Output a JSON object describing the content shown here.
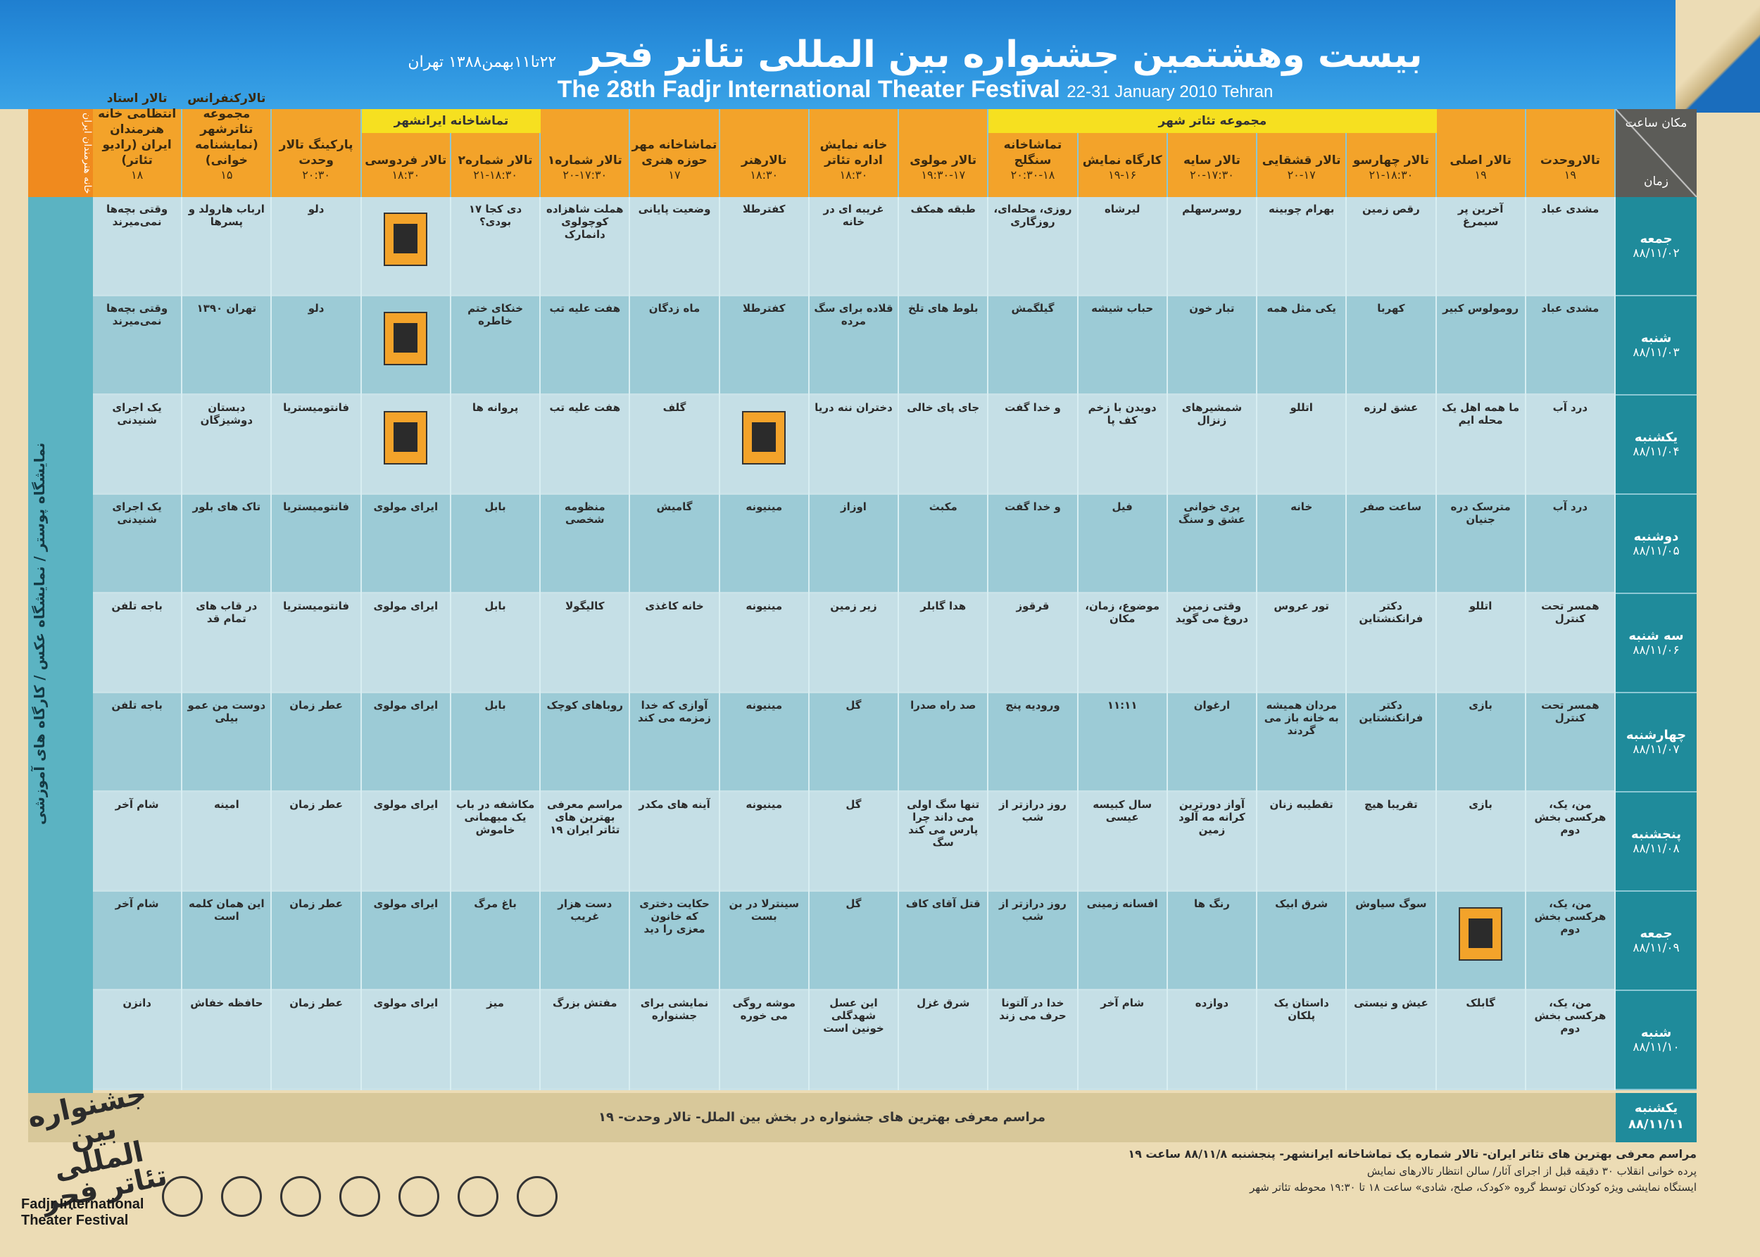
{
  "header": {
    "title_fa": "بیست وهشتمین جشنواره بین المللی تئاتر فجر",
    "subtitle_fa": "۲۲تا۱۱بهمن۱۳۸۸ تهران",
    "title_en": "The 28th Fadjr International Theater Festival",
    "dates_en": "22-31 January 2010 Tehran"
  },
  "corner": {
    "place_time": "مکان ساعت",
    "time": "زمان"
  },
  "group_labels": {
    "theater_shahr": "مجموعه تئاتر شهر",
    "iranshahr": "تماشاخانه ایرانشهر"
  },
  "venues": [
    {
      "name": "تالاروحدت",
      "time": "۱۹"
    },
    {
      "name": "تالار اصلی",
      "time": "۱۹"
    },
    {
      "name": "تالار چهارسو",
      "time": "۲۱-۱۸:۳۰"
    },
    {
      "name": "تالار قشقایی",
      "time": "۲۰-۱۷"
    },
    {
      "name": "تالار سایه",
      "time": "۲۰-۱۷:۳۰"
    },
    {
      "name": "کارگاه نمایش",
      "time": "۱۹-۱۶"
    },
    {
      "name": "تماشاخانه سنگلج",
      "time": "۲۰:۳۰-۱۸"
    },
    {
      "name": "تالار مولوی",
      "time": "۱۹:۳۰-۱۷"
    },
    {
      "name": "خانه نمایش اداره تئاتر",
      "time": "۱۸:۳۰"
    },
    {
      "name": "تالارهنر",
      "time": "۱۸:۳۰"
    },
    {
      "name": "تماشاخانه مهر حوزه هنری",
      "time": "۱۷"
    },
    {
      "name": "تالار شماره۱",
      "time": "۲۰-۱۷:۳۰"
    },
    {
      "name": "تالار شماره۲",
      "time": "۲۱-۱۸:۳۰"
    },
    {
      "name": "تالار فردوسی",
      "time": "۱۸:۳۰"
    },
    {
      "name": "پارکینگ تالار وحدت",
      "time": "۲۰:۳۰"
    },
    {
      "name": "تالارکنفرانس مجموعه تئاترشهر (نمایشنامه خوانی)",
      "time": "۱۵"
    },
    {
      "name": "تالار استاد انتظامی خانه هنرمندان ایران (رادیو تئاتر)",
      "time": "۱۸"
    }
  ],
  "left_header": "خانه هنرمندان ایران",
  "left_vertical": "نمایشگاه پوستر / نمایشگاه عکس / کارگاه های آموزشی",
  "days": [
    {
      "day": "جمعه",
      "date": "۸۸/۱۱/۰۲"
    },
    {
      "day": "شنبه",
      "date": "۸۸/۱۱/۰۳"
    },
    {
      "day": "یکشنبه",
      "date": "۸۸/۱۱/۰۴"
    },
    {
      "day": "دوشنبه",
      "date": "۸۸/۱۱/۰۵"
    },
    {
      "day": "سه شنبه",
      "date": "۸۸/۱۱/۰۶"
    },
    {
      "day": "چهارشنبه",
      "date": "۸۸/۱۱/۰۷"
    },
    {
      "day": "پنجشنبه",
      "date": "۸۸/۱۱/۰۸"
    },
    {
      "day": "جمعه",
      "date": "۸۸/۱۱/۰۹"
    },
    {
      "day": "شنبه",
      "date": "۸۸/۱۱/۱۰"
    }
  ],
  "rows": [
    [
      "مشدی عباد",
      "آخرین پر سیمرغ",
      "رقص زمین",
      "بهرام چوبینه",
      "روسرسهلم",
      "لیرشاه",
      "روزی، محله‌ای، روزگاری",
      "طبقه همکف",
      "غریبه ای در خانه",
      "کفترطلا",
      "وضعیت پایانی",
      "هملت شاهزاده کوچولوی دانمارک",
      "۱۷ دی کجا بودی؟",
      "",
      "دلو",
      "ارباب هارولد و پسرها",
      "وقتی بچه‌ها نمی‌میرند"
    ],
    [
      "مشدی عباد",
      "رومولوس کبیر",
      "کهربا",
      "یکی مثل همه",
      "تبار خون",
      "حباب شیشه",
      "گیلگمش",
      "بلوط های تلخ",
      "قلاده برای سگ مرده",
      "کفترطلا",
      "ماه زدگان",
      "هفت علیه تب",
      "خنکای ختم خاطره",
      "",
      "دلو",
      "تهران ۱۳۹۰",
      "وقتی بچه‌ها نمی‌میرند"
    ],
    [
      "درد آب",
      "ما همه اهل یک محله ایم",
      "عشق لرزه",
      "اتللو",
      "شمشیرهای زنزال",
      "دویدن با زخم کف پا",
      "و خدا گفت",
      "جای پای خالی",
      "دختران ننه دریا",
      "",
      "گلف",
      "هفت علیه تب",
      "پروانه ها",
      "",
      "فانتومیستریا",
      "دبستان دوشیزگان",
      "یک اجرای شنیدنی"
    ],
    [
      "درد آب",
      "مترسک دره جنیان",
      "ساعت صفر",
      "خانه",
      "پری خوانی عشق و سنگ",
      "فیل",
      "و خدا گفت",
      "مکبث",
      "اوزاز",
      "مینیونه",
      "گامیش",
      "منظومه شخصی",
      "بابل",
      "ایرای مولوی",
      "فانتومیستریا",
      "تاک های بلور",
      "یک اجرای شنیدنی"
    ],
    [
      "همسر تحت کنترل",
      "اتللو",
      "دکتر فرانکنشتاین",
      "تور عروس",
      "وقتی زمین دروغ می گوید",
      "موضوع، زمان، مکان",
      "قرقوز",
      "هدا گابلر",
      "زیر زمین",
      "مینیونه",
      "خانه کاغذی",
      "کالیگولا",
      "بابل",
      "ایرای مولوی",
      "فانتومیستریا",
      "در قاب های تمام قد",
      "باجه تلفن"
    ],
    [
      "همسر تحت کنترل",
      "بازی",
      "دکتر فرانکنشتاین",
      "مردان همیشه به خانه باز می گردند",
      "ارغوان",
      "۱۱:۱۱",
      "ورودیه پنج",
      "صد راه صدرا",
      "گل",
      "مینیونه",
      "آوازی که خدا زمزمه می کند",
      "روباهای کوچک",
      "بابل",
      "ایرای مولوی",
      "عطر زمان",
      "دوست من عمو بیلی",
      "باجه تلفن"
    ],
    [
      "من، یک، هرکسی بخش دوم",
      "بازی",
      "تقریبا هیچ",
      "تقطیبه زنان",
      "آواز دورترین کرانه مه آلود زمین",
      "سال کبیسه عیسی",
      "روز درازتر از شب",
      "تنها سگ اولی می داند چرا پارس می کند سگ",
      "گل",
      "مینیونه",
      "آینه های مکدر",
      "مراسم معرفی بهترین های تئاتر ایران ۱۹",
      "مکاشفه در باب یک میهمانی خاموش",
      "ایرای مولوی",
      "عطر زمان",
      "امینه",
      "شام آخر"
    ],
    [
      "من، یک، هرکسی بخش دوم",
      "",
      "سوگ سیاوش",
      "شرق ابیک",
      "رنگ ها",
      "افسانه زمینی",
      "روز درازتر از شب",
      "قتل آقای کاف",
      "گل",
      "سینترلا در بن بست",
      "حکایت دختری که خانون معزی را دید",
      "دست هزار غریب",
      "باغ مرگ",
      "ایرای مولوی",
      "عطر زمان",
      "این همان کلمه است",
      "شام آخر"
    ],
    [
      "من، یک، هرکسی بخش دوم",
      "گابلک",
      "عیش و نیستی",
      "داستان یک پلکان",
      "دوازده",
      "شام آخر",
      "خدا در آلتونا حرف می زند",
      "شرق غزل",
      "این عسل شهدگلی خونین است",
      "موشه روگی می خوره",
      "نمایشی برای جشنواره",
      "مفتش بزرگ",
      "میز",
      "ایرای مولوی",
      "عطر زمان",
      "حافظه خفاش",
      "دانزن"
    ]
  ],
  "last_row": {
    "day": "یکشنبه",
    "date": "۸۸/۱۱/۱۱",
    "text": "مراسم معرفی بهترین های جشنواره در بخش بین الملل- تالار وحدت- ۱۹"
  },
  "notes": {
    "line1": "مراسم معرفی بهترین های تئاتر ایران- تالار شماره یک تماشاخانه ایرانشهر- پنجشنبه ۸۸/۱۱/۸ ساعت ۱۹",
    "line2": "پرده خوانی انقلاب ۳۰ دقیقه قبل از اجرای آثار/ سالن انتظار تالارهای نمایش",
    "line3": "ایستگاه نمایشی ویژه کودکان توسط گروه «کودک، صلح، شادی» ساعت ۱۸ تا ۱۹:۳۰ محوطه تئاتر شهر"
  },
  "signature": {
    "fa": "جشنواره بین المللی تئاتر فجر",
    "en": "Fadjr International Theater Festival"
  }
}
